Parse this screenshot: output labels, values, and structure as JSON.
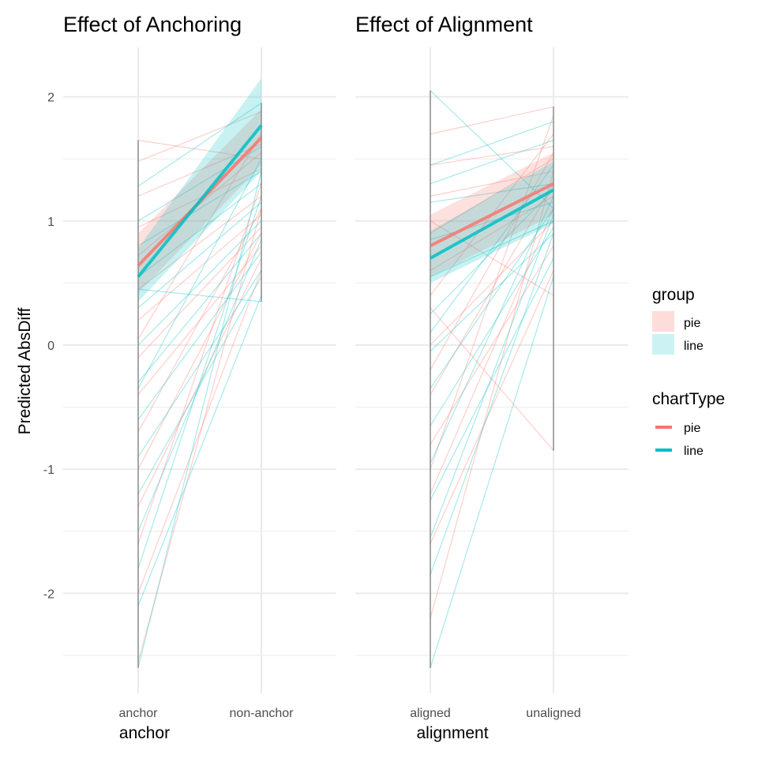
{
  "chart_data": {
    "type": "line",
    "ylabel": "Predicted AbsDiff",
    "ylim": [
      -2.7,
      2.4
    ],
    "y_ticks": [
      "2",
      "1",
      "0",
      "-1",
      "-2"
    ],
    "grid": true,
    "legend_position": "right",
    "colors": {
      "pie": "#F8766D",
      "line": "#00BFC4"
    },
    "legend": {
      "fill": {
        "title": "group",
        "entries": [
          "pie",
          "line"
        ]
      },
      "color": {
        "title": "chartType",
        "entries": [
          "pie",
          "line"
        ]
      }
    },
    "panels": [
      {
        "title": "Effect of Anchoring",
        "xlabel": "anchor",
        "categories": [
          "anchor",
          "non-anchor"
        ],
        "series": [
          {
            "name": "pie",
            "values": [
              0.64,
              1.67
            ],
            "ribbon_low": [
              0.42,
              1.45
            ],
            "ribbon_high": [
              0.9,
              1.9
            ]
          },
          {
            "name": "line",
            "values": [
              0.55,
              1.77
            ],
            "ribbon_low": [
              0.35,
              1.4
            ],
            "ribbon_high": [
              0.78,
              2.15
            ]
          }
        ],
        "individual_lines": [
          {
            "group": "pie",
            "values": [
              1.48,
              1.88
            ]
          },
          {
            "group": "pie",
            "values": [
              1.2,
              1.62
            ]
          },
          {
            "group": "pie",
            "values": [
              0.95,
              1.42
            ]
          },
          {
            "group": "pie",
            "values": [
              0.72,
              1.55
            ]
          },
          {
            "group": "pie",
            "values": [
              0.45,
              1.2
            ]
          },
          {
            "group": "pie",
            "values": [
              0.2,
              1.05
            ]
          },
          {
            "group": "pie",
            "values": [
              -0.1,
              0.95
            ]
          },
          {
            "group": "pie",
            "values": [
              -0.4,
              0.8
            ]
          },
          {
            "group": "pie",
            "values": [
              -0.7,
              1.1
            ]
          },
          {
            "group": "pie",
            "values": [
              -1.0,
              0.9
            ]
          },
          {
            "group": "pie",
            "values": [
              -1.3,
              0.7
            ]
          },
          {
            "group": "pie",
            "values": [
              -1.6,
              1.3
            ]
          },
          {
            "group": "pie",
            "values": [
              -2.0,
              0.6
            ]
          },
          {
            "group": "pie",
            "values": [
              -2.55,
              1.1
            ]
          },
          {
            "group": "pie",
            "values": [
              1.65,
              1.5
            ]
          },
          {
            "group": "pie",
            "values": [
              0.05,
              1.7
            ]
          },
          {
            "group": "line",
            "values": [
              1.28,
              1.95
            ]
          },
          {
            "group": "line",
            "values": [
              1.0,
              1.6
            ]
          },
          {
            "group": "line",
            "values": [
              0.8,
              1.4
            ]
          },
          {
            "group": "line",
            "values": [
              0.55,
              1.3
            ]
          },
          {
            "group": "line",
            "values": [
              0.3,
              1.15
            ]
          },
          {
            "group": "line",
            "values": [
              0.0,
              1.0
            ]
          },
          {
            "group": "line",
            "values": [
              -0.3,
              0.9
            ]
          },
          {
            "group": "line",
            "values": [
              -0.6,
              0.75
            ]
          },
          {
            "group": "line",
            "values": [
              -0.9,
              0.6
            ]
          },
          {
            "group": "line",
            "values": [
              -1.2,
              0.55
            ]
          },
          {
            "group": "line",
            "values": [
              -1.5,
              0.85
            ]
          },
          {
            "group": "line",
            "values": [
              -1.8,
              1.2
            ]
          },
          {
            "group": "line",
            "values": [
              -2.1,
              0.4
            ]
          },
          {
            "group": "line",
            "values": [
              -2.6,
              1.4
            ]
          },
          {
            "group": "line",
            "values": [
              0.45,
              0.35
            ]
          },
          {
            "group": "line",
            "values": [
              -0.35,
              1.5
            ]
          }
        ]
      },
      {
        "title": "Effect of Alignment",
        "xlabel": "alignment",
        "categories": [
          "aligned",
          "unaligned"
        ],
        "series": [
          {
            "name": "pie",
            "values": [
              0.8,
              1.3
            ],
            "ribbon_low": [
              0.55,
              1.05
            ],
            "ribbon_high": [
              1.05,
              1.55
            ]
          },
          {
            "name": "line",
            "values": [
              0.7,
              1.25
            ],
            "ribbon_low": [
              0.5,
              0.98
            ],
            "ribbon_high": [
              0.92,
              1.48
            ]
          }
        ],
        "individual_lines": [
          {
            "group": "pie",
            "values": [
              1.7,
              1.92
            ]
          },
          {
            "group": "pie",
            "values": [
              1.45,
              1.6
            ]
          },
          {
            "group": "pie",
            "values": [
              1.2,
              1.4
            ]
          },
          {
            "group": "pie",
            "values": [
              0.9,
              1.5
            ]
          },
          {
            "group": "pie",
            "values": [
              0.6,
              1.2
            ]
          },
          {
            "group": "pie",
            "values": [
              0.3,
              -0.85
            ]
          },
          {
            "group": "pie",
            "values": [
              0.0,
              1.0
            ]
          },
          {
            "group": "pie",
            "values": [
              -0.4,
              1.3
            ]
          },
          {
            "group": "pie",
            "values": [
              -0.8,
              0.8
            ]
          },
          {
            "group": "pie",
            "values": [
              -1.2,
              1.1
            ]
          },
          {
            "group": "pie",
            "values": [
              -1.6,
              0.6
            ]
          },
          {
            "group": "pie",
            "values": [
              -2.2,
              1.4
            ]
          },
          {
            "group": "pie",
            "values": [
              1.0,
              0.4
            ]
          },
          {
            "group": "pie",
            "values": [
              0.4,
              1.7
            ]
          },
          {
            "group": "pie",
            "values": [
              -0.2,
              1.55
            ]
          },
          {
            "group": "pie",
            "values": [
              -1.0,
              1.85
            ]
          },
          {
            "group": "line",
            "values": [
              2.05,
              1.1
            ]
          },
          {
            "group": "line",
            "values": [
              1.45,
              1.8
            ]
          },
          {
            "group": "line",
            "values": [
              1.15,
              1.3
            ]
          },
          {
            "group": "line",
            "values": [
              0.85,
              1.15
            ]
          },
          {
            "group": "line",
            "values": [
              0.55,
              1.0
            ]
          },
          {
            "group": "line",
            "values": [
              0.25,
              1.25
            ]
          },
          {
            "group": "line",
            "values": [
              -0.05,
              0.9
            ]
          },
          {
            "group": "line",
            "values": [
              -0.35,
              1.1
            ]
          },
          {
            "group": "line",
            "values": [
              -0.65,
              0.95
            ]
          },
          {
            "group": "line",
            "values": [
              -0.95,
              1.2
            ]
          },
          {
            "group": "line",
            "values": [
              -1.25,
              0.7
            ]
          },
          {
            "group": "line",
            "values": [
              -1.55,
              1.05
            ]
          },
          {
            "group": "line",
            "values": [
              -1.85,
              0.9
            ]
          },
          {
            "group": "line",
            "values": [
              -2.6,
              0.55
            ]
          },
          {
            "group": "line",
            "values": [
              1.3,
              1.65
            ]
          },
          {
            "group": "line",
            "values": [
              0.1,
              1.45
            ]
          }
        ]
      }
    ]
  }
}
